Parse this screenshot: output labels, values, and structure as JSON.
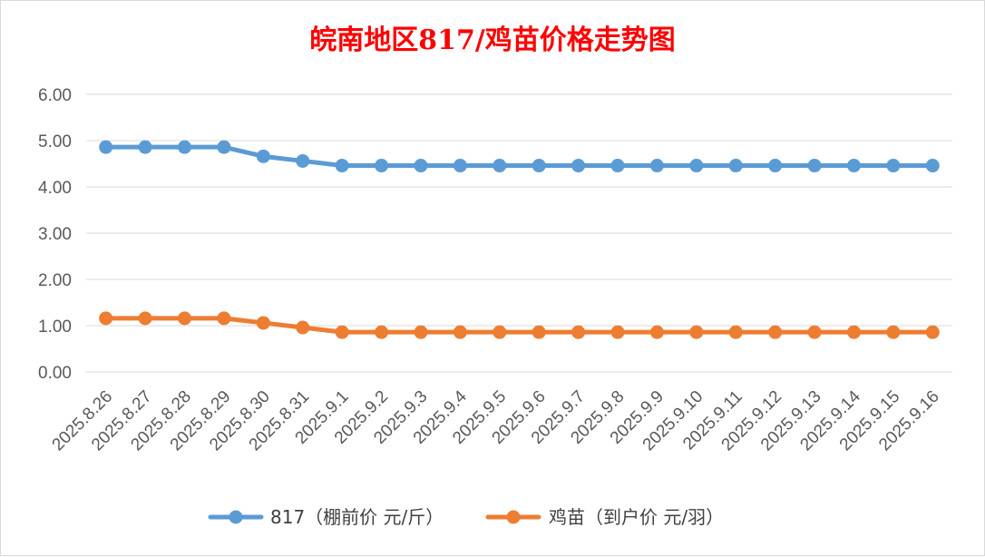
{
  "chart_data": {
    "type": "line",
    "title": "皖南地区817/鸡苗价格走势图",
    "x": [
      "2025.8.26",
      "2025.8.27",
      "2025.8.28",
      "2025.8.29",
      "2025.8.30",
      "2025.8.31",
      "2025.9.1",
      "2025.9.2",
      "2025.9.3",
      "2025.9.4",
      "2025.9.5",
      "2025.9.6",
      "2025.9.7",
      "2025.9.8",
      "2025.9.9",
      "2025.9.10",
      "2025.9.11",
      "2025.9.12",
      "2025.9.13",
      "2025.9.14",
      "2025.9.15",
      "2025.9.16"
    ],
    "series": [
      {
        "name": "817（棚前价 元/斤）",
        "color": "#5b9bd5",
        "values": [
          4.86,
          4.86,
          4.86,
          4.86,
          4.66,
          4.56,
          4.46,
          4.46,
          4.46,
          4.46,
          4.46,
          4.46,
          4.46,
          4.46,
          4.46,
          4.46,
          4.46,
          4.46,
          4.46,
          4.46,
          4.46,
          4.46
        ]
      },
      {
        "name": "鸡苗（到户价 元/羽）",
        "color": "#ed7d31",
        "values": [
          1.16,
          1.16,
          1.16,
          1.16,
          1.06,
          0.96,
          0.86,
          0.86,
          0.86,
          0.86,
          0.86,
          0.86,
          0.86,
          0.86,
          0.86,
          0.86,
          0.86,
          0.86,
          0.86,
          0.86,
          0.86,
          0.86
        ]
      }
    ],
    "ylim": [
      0,
      6
    ],
    "yticks": [
      "0.00",
      "1.00",
      "2.00",
      "3.00",
      "4.00",
      "5.00",
      "6.00"
    ],
    "grid": true,
    "legend": "bottom",
    "title_color": "#ff0000"
  }
}
